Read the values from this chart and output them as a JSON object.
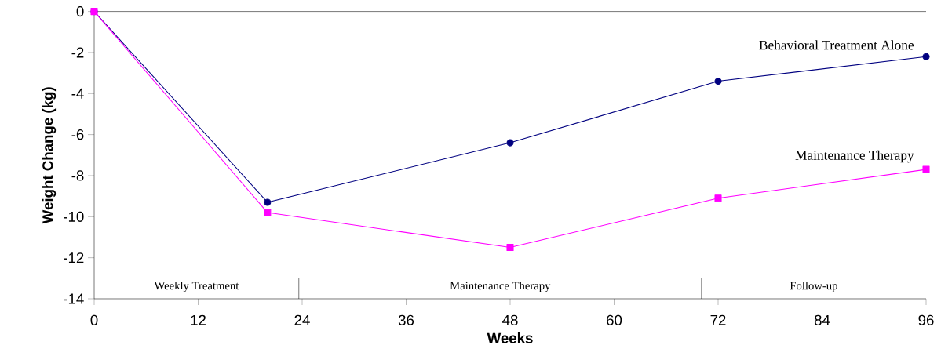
{
  "chart_data": {
    "type": "line",
    "xlabel": "Weeks",
    "ylabel": "Weight Change (kg)",
    "x": [
      0,
      20,
      48,
      72,
      96
    ],
    "series": [
      {
        "name": "Behavioral Treatment Alone",
        "color": "#000080",
        "marker": "circle",
        "values": [
          0,
          -9.3,
          -6.4,
          -3.4,
          -2.2
        ]
      },
      {
        "name": "Maintenance Therapy",
        "color": "#ff00ff",
        "marker": "square",
        "values": [
          0,
          -9.8,
          -11.5,
          -9.1,
          -7.7
        ]
      }
    ],
    "annotations": [
      "Weekly Treatment",
      "Maintenance Therapy",
      "Follow-up"
    ],
    "xlim": [
      0,
      96
    ],
    "ylim": [
      -14,
      0
    ],
    "xticks": [
      0,
      12,
      24,
      36,
      48,
      60,
      72,
      84,
      96
    ],
    "yticks": [
      -14,
      -12,
      -10,
      -8,
      -6,
      -4,
      -2,
      0
    ],
    "grid": false,
    "line_style": "solid"
  }
}
